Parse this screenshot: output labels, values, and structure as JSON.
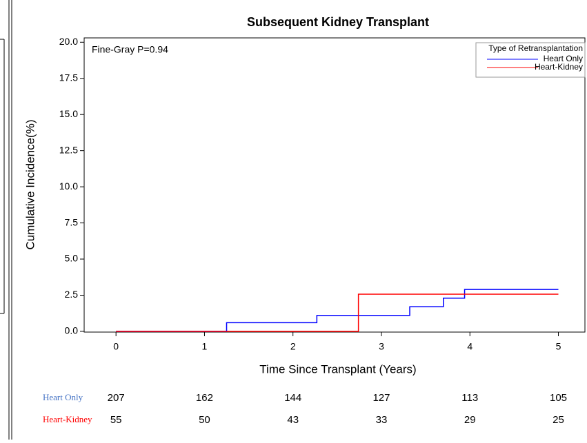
{
  "chart_data": {
    "type": "step",
    "title": "Subsequent Kidney Transplant",
    "xlabel": "Time Since Transplant (Years)",
    "ylabel": "Cumulative Incidence(%)",
    "annotation": "Fine-Gray P=0.94",
    "legend_title": "Type of Retransplantation",
    "legend": "upper right",
    "xlim": [
      -0.36,
      5.3
    ],
    "ylim": [
      -0.05,
      20.3
    ],
    "xticks": [
      0,
      1,
      2,
      3,
      4,
      5
    ],
    "yticks": [
      {
        "value": 0,
        "label": "0.0"
      },
      {
        "value": 2.5,
        "label": "2.5"
      },
      {
        "value": 5,
        "label": "5.0"
      },
      {
        "value": 7.5,
        "label": "7.5"
      },
      {
        "value": 10,
        "label": "10.0"
      },
      {
        "value": 12.5,
        "label": "12.5"
      },
      {
        "value": 15,
        "label": "15.0"
      },
      {
        "value": 17.5,
        "label": "17.5"
      },
      {
        "value": 20,
        "label": "20.0"
      }
    ],
    "series": [
      {
        "name": "Heart Only",
        "color": "#0000ff",
        "x": [
          0,
          1.25,
          2.27,
          3.32,
          3.7,
          3.94,
          5
        ],
        "values": [
          0,
          0.6,
          1.1,
          1.7,
          2.3,
          2.9,
          2.9
        ]
      },
      {
        "name": "Heart-Kidney",
        "color": "#ff0000",
        "x": [
          0,
          2.74,
          5
        ],
        "values": [
          0,
          2.57,
          2.57
        ]
      }
    ],
    "risk_table": {
      "times": [
        0,
        1,
        2,
        3,
        4,
        5
      ],
      "rows": [
        {
          "name": "Heart Only",
          "color": "#4472c4",
          "values": [
            207,
            162,
            144,
            127,
            113,
            105
          ]
        },
        {
          "name": "Heart-Kidney",
          "color": "#ff0000",
          "values": [
            55,
            50,
            43,
            33,
            29,
            25
          ]
        }
      ]
    }
  }
}
